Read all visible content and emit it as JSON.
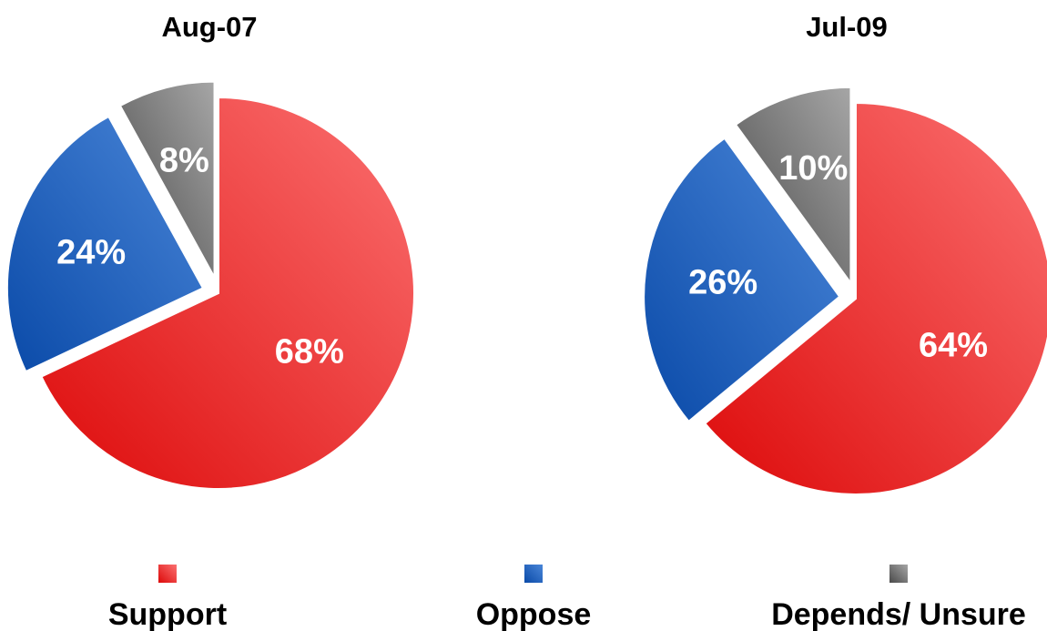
{
  "chart_data": [
    {
      "type": "pie",
      "title": "Aug-07",
      "categories": [
        "Support",
        "Oppose",
        "Depends/ Unsure"
      ],
      "values": [
        68,
        24,
        8
      ],
      "labels": [
        "68%",
        "24%",
        "8%"
      ]
    },
    {
      "type": "pie",
      "title": "Jul-09",
      "categories": [
        "Support",
        "Oppose",
        "Depends/ Unsure"
      ],
      "values": [
        64,
        26,
        10
      ],
      "labels": [
        "64%",
        "26%",
        "10%"
      ]
    }
  ],
  "legend": {
    "placement": "bottom",
    "items": [
      {
        "label": "Support",
        "color": "#f05050"
      },
      {
        "label": "Oppose",
        "color": "#3a78cc"
      },
      {
        "label": "Depends/ Unsure",
        "color": "#808080"
      }
    ]
  },
  "colors": {
    "support_light": "#fb7171",
    "support_dark": "#dd0a0a",
    "oppose_light": "#4a86d8",
    "oppose_dark": "#0a4aa8",
    "unsure_light": "#a6a6a6",
    "unsure_dark": "#4a4a4a"
  }
}
